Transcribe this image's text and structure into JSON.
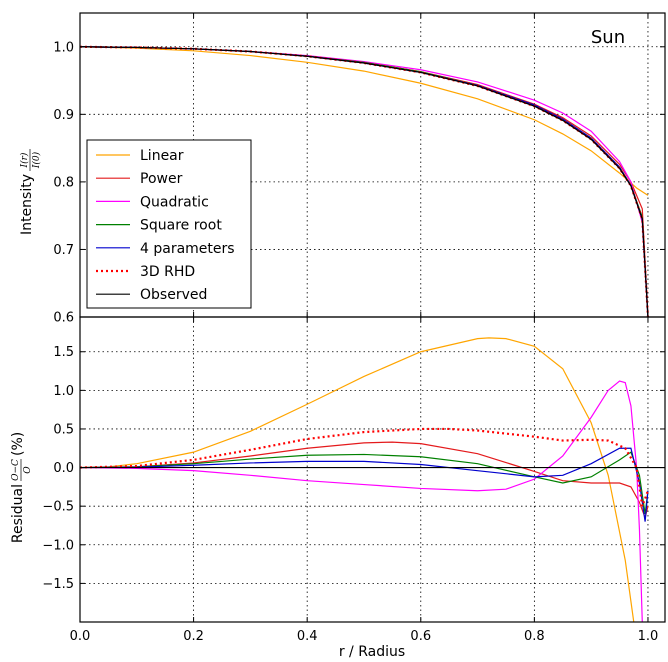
{
  "chart_data": [
    {
      "type": "line",
      "panel": "top",
      "title": "Sun",
      "ylabel": "Intensity",
      "ylabel_fraction": {
        "num": "I(r)",
        "den": "I(0)"
      },
      "xlim": [
        0.0,
        1.03
      ],
      "ylim": [
        0.6,
        1.05
      ],
      "yticks": [
        "0.6",
        "0.7",
        "0.8",
        "0.9",
        "1.0"
      ],
      "grid": true,
      "legend_position": "lower-left",
      "series": [
        {
          "name": "Linear",
          "color": "#ffa500",
          "style": "solid",
          "x": [
            0,
            0.1,
            0.2,
            0.3,
            0.4,
            0.5,
            0.6,
            0.7,
            0.8,
            0.85,
            0.9,
            0.95,
            0.98,
            1.0
          ],
          "y": [
            1.0,
            0.998,
            0.994,
            0.987,
            0.977,
            0.964,
            0.946,
            0.923,
            0.892,
            0.871,
            0.846,
            0.813,
            0.791,
            0.78
          ]
        },
        {
          "name": "Power",
          "color": "#e41a1c",
          "style": "solid",
          "x": [
            0,
            0.1,
            0.2,
            0.3,
            0.4,
            0.5,
            0.6,
            0.7,
            0.8,
            0.85,
            0.9,
            0.95,
            0.97,
            0.99,
            1.0
          ],
          "y": [
            1.0,
            0.999,
            0.997,
            0.993,
            0.986,
            0.977,
            0.963,
            0.944,
            0.915,
            0.895,
            0.868,
            0.826,
            0.8,
            0.76,
            0.6
          ]
        },
        {
          "name": "Quadratic",
          "color": "#ff00ff",
          "style": "solid",
          "x": [
            0,
            0.1,
            0.2,
            0.3,
            0.4,
            0.5,
            0.6,
            0.7,
            0.8,
            0.85,
            0.9,
            0.95,
            0.97,
            0.99,
            1.0
          ],
          "y": [
            1.0,
            0.999,
            0.997,
            0.993,
            0.987,
            0.978,
            0.966,
            0.948,
            0.921,
            0.902,
            0.875,
            0.83,
            0.8,
            0.74,
            0.6
          ]
        },
        {
          "name": "Square root",
          "color": "#008000",
          "style": "solid",
          "x": [
            0,
            0.1,
            0.2,
            0.3,
            0.4,
            0.5,
            0.6,
            0.7,
            0.8,
            0.85,
            0.9,
            0.95,
            0.97,
            0.99,
            1.0
          ],
          "y": [
            1.0,
            0.999,
            0.997,
            0.993,
            0.986,
            0.977,
            0.963,
            0.943,
            0.913,
            0.892,
            0.864,
            0.821,
            0.795,
            0.748,
            0.6
          ]
        },
        {
          "name": "4 parameters",
          "color": "#0000cd",
          "style": "solid",
          "x": [
            0,
            0.1,
            0.2,
            0.3,
            0.4,
            0.5,
            0.6,
            0.7,
            0.8,
            0.85,
            0.9,
            0.95,
            0.97,
            0.99,
            1.0
          ],
          "y": [
            1.0,
            0.999,
            0.997,
            0.993,
            0.986,
            0.976,
            0.962,
            0.943,
            0.914,
            0.893,
            0.865,
            0.822,
            0.795,
            0.745,
            0.6
          ]
        },
        {
          "name": "3D RHD",
          "color": "#ff0000",
          "style": "dotted",
          "x": [
            0,
            0.1,
            0.2,
            0.3,
            0.4,
            0.5,
            0.6,
            0.7,
            0.8,
            0.85,
            0.9,
            0.95,
            0.97,
            0.99,
            1.0
          ],
          "y": [
            1.0,
            0.999,
            0.997,
            0.993,
            0.986,
            0.976,
            0.962,
            0.942,
            0.912,
            0.891,
            0.863,
            0.82,
            0.794,
            0.745,
            0.6
          ]
        },
        {
          "name": "Observed",
          "color": "#000000",
          "style": "solid",
          "x": [
            0,
            0.1,
            0.2,
            0.3,
            0.4,
            0.5,
            0.6,
            0.7,
            0.8,
            0.85,
            0.9,
            0.95,
            0.97,
            0.99,
            1.0
          ],
          "y": [
            1.0,
            0.999,
            0.997,
            0.993,
            0.986,
            0.976,
            0.962,
            0.942,
            0.912,
            0.891,
            0.863,
            0.82,
            0.794,
            0.745,
            0.6
          ]
        }
      ]
    },
    {
      "type": "line",
      "panel": "bottom",
      "xlabel": "r / Radius",
      "ylabel": "Residual",
      "ylabel_fraction": {
        "num": "O−C",
        "den": "O"
      },
      "ylabel_unit": "(%)",
      "xlim": [
        0.0,
        1.03
      ],
      "ylim": [
        -2.0,
        1.95
      ],
      "xticks": [
        "0.0",
        "0.2",
        "0.4",
        "0.6",
        "0.8",
        "1.0"
      ],
      "yticks": [
        "−1.5",
        "−1.0",
        "−0.5",
        "0.0",
        "0.5",
        "1.0",
        "1.5"
      ],
      "grid": true,
      "series": [
        {
          "name": "Linear",
          "color": "#ffa500",
          "style": "solid",
          "x": [
            0,
            0.05,
            0.1,
            0.2,
            0.3,
            0.4,
            0.5,
            0.6,
            0.7,
            0.72,
            0.75,
            0.8,
            0.85,
            0.9,
            0.93,
            0.96,
            0.975
          ],
          "y": [
            0,
            0.01,
            0.05,
            0.2,
            0.47,
            0.82,
            1.18,
            1.5,
            1.67,
            1.68,
            1.67,
            1.57,
            1.28,
            0.58,
            -0.1,
            -1.2,
            -2.0
          ]
        },
        {
          "name": "Power",
          "color": "#e41a1c",
          "style": "solid",
          "x": [
            0,
            0.1,
            0.2,
            0.3,
            0.4,
            0.5,
            0.55,
            0.6,
            0.7,
            0.8,
            0.85,
            0.9,
            0.95,
            0.97,
            0.985,
            0.995,
            1.0
          ],
          "y": [
            0,
            0.01,
            0.06,
            0.15,
            0.25,
            0.32,
            0.33,
            0.31,
            0.18,
            -0.05,
            -0.17,
            -0.2,
            -0.2,
            -0.25,
            -0.45,
            -0.65,
            -0.5
          ]
        },
        {
          "name": "Quadratic",
          "color": "#ff00ff",
          "style": "solid",
          "x": [
            0,
            0.1,
            0.2,
            0.3,
            0.4,
            0.5,
            0.6,
            0.7,
            0.75,
            0.8,
            0.85,
            0.9,
            0.93,
            0.95,
            0.96,
            0.97,
            0.98,
            0.985,
            0.99
          ],
          "y": [
            0,
            -0.01,
            -0.04,
            -0.1,
            -0.17,
            -0.22,
            -0.27,
            -0.3,
            -0.28,
            -0.15,
            0.15,
            0.65,
            1.0,
            1.12,
            1.1,
            0.8,
            0.0,
            -0.8,
            -2.0
          ]
        },
        {
          "name": "Square root",
          "color": "#008000",
          "style": "solid",
          "x": [
            0,
            0.1,
            0.2,
            0.3,
            0.4,
            0.5,
            0.6,
            0.7,
            0.8,
            0.85,
            0.9,
            0.95,
            0.97,
            0.985,
            0.995,
            1.0
          ],
          "y": [
            0,
            0.01,
            0.05,
            0.11,
            0.16,
            0.17,
            0.14,
            0.05,
            -0.12,
            -0.2,
            -0.12,
            0.1,
            0.2,
            -0.1,
            -0.6,
            -0.3
          ]
        },
        {
          "name": "4 parameters",
          "color": "#0000cd",
          "style": "solid",
          "x": [
            0,
            0.1,
            0.2,
            0.3,
            0.4,
            0.5,
            0.6,
            0.7,
            0.8,
            0.85,
            0.9,
            0.95,
            0.97,
            0.985,
            0.995,
            1.0
          ],
          "y": [
            0,
            0.005,
            0.03,
            0.06,
            0.08,
            0.08,
            0.04,
            -0.04,
            -0.12,
            -0.1,
            0.05,
            0.25,
            0.25,
            -0.2,
            -0.7,
            -0.3
          ]
        },
        {
          "name": "3D RHD",
          "color": "#ff0000",
          "style": "dotted",
          "x": [
            0,
            0.1,
            0.2,
            0.3,
            0.4,
            0.5,
            0.6,
            0.65,
            0.7,
            0.8,
            0.85,
            0.9,
            0.93,
            0.96,
            0.98,
            0.99,
            1.0
          ],
          "y": [
            0,
            0.02,
            0.1,
            0.23,
            0.37,
            0.46,
            0.5,
            0.5,
            0.48,
            0.4,
            0.35,
            0.36,
            0.35,
            0.25,
            0.0,
            -0.5,
            -0.3
          ]
        },
        {
          "name": "Observed",
          "color": "#000000",
          "style": "solid",
          "x": [
            0,
            1.03
          ],
          "y": [
            0,
            0
          ]
        }
      ]
    }
  ]
}
